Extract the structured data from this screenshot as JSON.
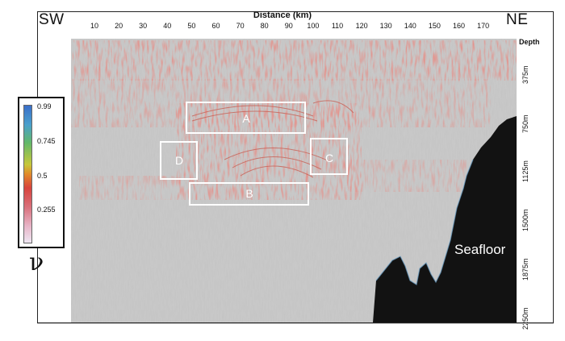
{
  "figure": {
    "corner_left": "SW",
    "corner_right": "NE",
    "x_axis_title": "Distance (km)",
    "x_ticks": [
      "10",
      "20",
      "30",
      "40",
      "50",
      "60",
      "70",
      "80",
      "90",
      "100",
      "110",
      "120",
      "130",
      "140",
      "150",
      "160",
      "170"
    ],
    "depth_title": "Depth",
    "depth_ticks": [
      "375m",
      "750m",
      "1125m",
      "1500m",
      "1875m",
      "2250m"
    ],
    "seafloor_label": "Seafloor",
    "boxes": [
      {
        "label": "A"
      },
      {
        "label": "B"
      },
      {
        "label": "C"
      },
      {
        "label": "D"
      }
    ]
  },
  "legend": {
    "ticks": [
      "0.99",
      "0.745",
      "0.5",
      "0.255"
    ],
    "symbol": "ν",
    "colors": [
      "#3a6fc9",
      "#62b86a",
      "#c7c83a",
      "#d8433d",
      "#e7b5c8"
    ]
  }
}
